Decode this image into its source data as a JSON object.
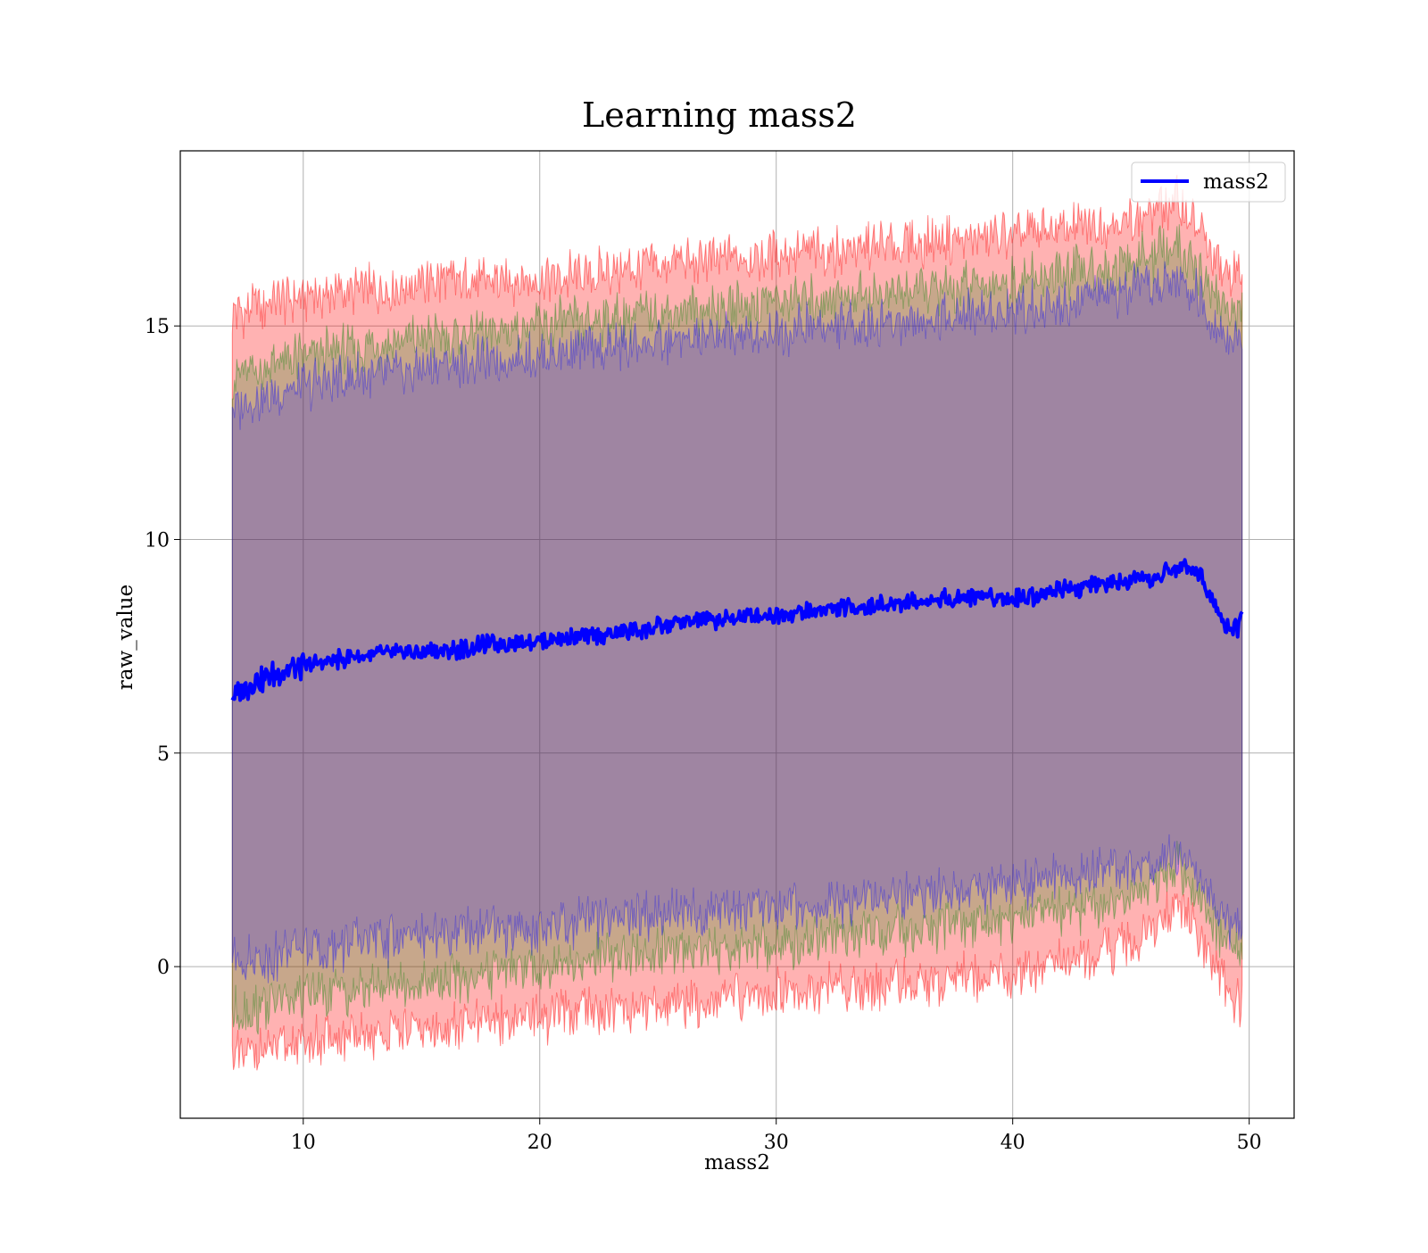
{
  "chart_data": {
    "type": "line",
    "title": "Learning mass2",
    "xlabel": "mass2",
    "ylabel": "raw_value",
    "xlim": [
      4.8,
      51.9
    ],
    "ylim": [
      -3.55,
      19.1
    ],
    "xticks": [
      10,
      20,
      30,
      40,
      50
    ],
    "yticks": [
      0,
      5,
      10,
      15
    ],
    "grid": true,
    "legend_position": "top-right",
    "x_start": 7.0,
    "x_end": 49.7,
    "line_color": "#0000ff",
    "series": [
      {
        "name": "mass2",
        "color": "#0000ff",
        "x": [
          7.0,
          8.0,
          9.0,
          10.0,
          11.0,
          12.0,
          13.0,
          14.0,
          15.0,
          16.0,
          17.0,
          18.0,
          19.0,
          20.0,
          21.0,
          22.0,
          23.0,
          24.0,
          25.0,
          26.0,
          27.0,
          28.0,
          29.0,
          30.0,
          31.0,
          32.0,
          33.0,
          34.0,
          35.0,
          36.0,
          37.0,
          38.0,
          39.0,
          40.0,
          41.0,
          42.0,
          43.0,
          44.0,
          45.0,
          46.0,
          47.0,
          47.5,
          48.0,
          48.5,
          49.0,
          49.5,
          49.7
        ],
        "y": [
          6.3,
          6.7,
          6.9,
          7.0,
          7.15,
          7.25,
          7.3,
          7.35,
          7.35,
          7.4,
          7.45,
          7.55,
          7.6,
          7.65,
          7.7,
          7.75,
          7.8,
          7.85,
          7.95,
          8.05,
          8.1,
          8.15,
          8.2,
          8.25,
          8.3,
          8.35,
          8.4,
          8.45,
          8.5,
          8.55,
          8.6,
          8.65,
          8.7,
          8.6,
          8.7,
          8.85,
          8.9,
          8.95,
          9.0,
          9.1,
          9.35,
          9.4,
          9.1,
          8.6,
          8.0,
          7.9,
          8.3
        ]
      }
    ],
    "bands": [
      {
        "color": "#ff0000",
        "opacity": 0.3,
        "x": [
          7.0,
          10.0,
          15.0,
          20.0,
          25.0,
          30.0,
          35.0,
          40.0,
          45.0,
          47.0,
          48.0,
          49.0,
          49.7
        ],
        "upper": [
          15.3,
          15.7,
          16.0,
          16.1,
          16.4,
          16.7,
          16.9,
          17.1,
          17.5,
          17.9,
          17.1,
          16.2,
          16.3
        ],
        "lower": [
          -2.2,
          -1.8,
          -1.5,
          -1.2,
          -0.9,
          -0.6,
          -0.4,
          -0.2,
          0.5,
          1.5,
          0.6,
          -0.5,
          -0.9
        ]
      },
      {
        "color": "#008000",
        "opacity": 0.22,
        "x": [
          7.0,
          10.0,
          15.0,
          20.0,
          25.0,
          30.0,
          35.0,
          40.0,
          45.0,
          47.0,
          48.0,
          49.0,
          49.7
        ],
        "upper": [
          13.8,
          14.3,
          14.7,
          15.0,
          15.3,
          15.6,
          15.8,
          16.0,
          16.5,
          16.8,
          16.2,
          15.4,
          15.3
        ],
        "lower": [
          -1.1,
          -0.7,
          -0.4,
          0.0,
          0.3,
          0.5,
          0.8,
          1.1,
          1.6,
          2.3,
          1.4,
          0.6,
          0.2
        ]
      },
      {
        "color": "#0000ff",
        "opacity": 0.2,
        "x": [
          7.0,
          10.0,
          15.0,
          20.0,
          25.0,
          30.0,
          35.0,
          40.0,
          45.0,
          47.0,
          48.0,
          49.0,
          49.7
        ],
        "upper": [
          13.1,
          13.6,
          14.0,
          14.3,
          14.6,
          14.9,
          15.1,
          15.4,
          15.8,
          16.1,
          15.6,
          14.7,
          14.6
        ],
        "lower": [
          0.1,
          0.4,
          0.7,
          0.9,
          1.2,
          1.4,
          1.6,
          1.9,
          2.3,
          2.6,
          1.9,
          1.1,
          0.9
        ]
      }
    ]
  }
}
